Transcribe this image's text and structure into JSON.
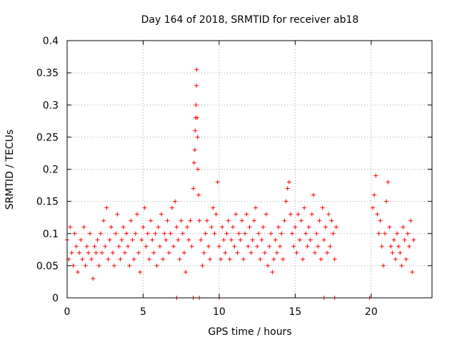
{
  "chart_data": {
    "type": "scatter",
    "title": "Day 164 of 2018, SRMTID for receiver ab18",
    "xlabel": "GPS time / hours",
    "ylabel": "SRMTID / TECUs",
    "xlim": [
      0,
      24
    ],
    "ylim": [
      0,
      0.4
    ],
    "xticks": [
      0,
      5,
      10,
      15,
      20
    ],
    "xtick_labels": [
      "0",
      "5",
      "10",
      "15",
      "20"
    ],
    "yticks": [
      0,
      0.05,
      0.1,
      0.15,
      0.2,
      0.25,
      0.3,
      0.35,
      0.4
    ],
    "ytick_labels": [
      "0",
      "0.05",
      "0.1",
      "0.15",
      "0.2",
      "0.25",
      "0.3",
      "0.35",
      "0.4"
    ],
    "grid": true,
    "marker": "+",
    "color": "#ff0000",
    "series": [
      {
        "name": "SRMTID",
        "x": [
          0.0,
          0.1,
          0.2,
          0.3,
          0.4,
          0.5,
          0.6,
          0.7,
          0.8,
          0.9,
          1.0,
          1.1,
          1.2,
          1.3,
          1.4,
          1.5,
          1.6,
          1.7,
          1.8,
          1.9,
          2.0,
          2.1,
          2.2,
          2.3,
          2.4,
          2.5,
          2.6,
          2.7,
          2.8,
          2.9,
          3.0,
          3.1,
          3.2,
          3.3,
          3.4,
          3.5,
          3.6,
          3.7,
          3.8,
          3.9,
          4.0,
          4.1,
          4.2,
          4.3,
          4.4,
          4.5,
          4.6,
          4.7,
          4.8,
          4.9,
          5.0,
          5.1,
          5.2,
          5.3,
          5.4,
          5.5,
          5.6,
          5.7,
          5.8,
          5.9,
          6.0,
          6.1,
          6.2,
          6.3,
          6.4,
          6.5,
          6.6,
          6.7,
          6.8,
          6.9,
          7.0,
          7.1,
          7.2,
          7.3,
          7.4,
          7.5,
          7.6,
          7.7,
          7.8,
          7.9,
          8.0,
          8.1,
          8.2,
          8.3,
          8.35,
          8.4,
          8.42,
          8.45,
          8.48,
          8.5,
          8.52,
          8.55,
          8.58,
          8.6,
          8.65,
          8.7,
          8.8,
          8.9,
          9.0,
          9.1,
          9.2,
          9.3,
          9.4,
          9.5,
          9.6,
          9.7,
          9.8,
          9.9,
          10.0,
          10.1,
          10.2,
          10.3,
          10.4,
          10.5,
          10.6,
          10.7,
          10.8,
          10.9,
          11.0,
          11.1,
          11.2,
          11.3,
          11.4,
          11.5,
          11.6,
          11.7,
          11.8,
          11.9,
          12.0,
          12.1,
          12.2,
          12.3,
          12.4,
          12.5,
          12.6,
          12.7,
          12.8,
          12.9,
          13.0,
          13.1,
          13.2,
          13.3,
          13.4,
          13.5,
          13.6,
          13.7,
          13.8,
          13.9,
          14.0,
          14.1,
          14.2,
          14.3,
          14.4,
          14.5,
          14.6,
          14.7,
          14.8,
          14.9,
          15.0,
          15.1,
          15.2,
          15.3,
          15.4,
          15.5,
          15.6,
          15.7,
          15.8,
          15.9,
          16.0,
          16.1,
          16.2,
          16.3,
          16.4,
          16.5,
          16.6,
          16.7,
          16.8,
          16.9,
          17.0,
          17.1,
          17.2,
          17.3,
          17.4,
          17.5,
          17.6,
          17.7,
          20.1,
          20.2,
          20.3,
          20.4,
          20.5,
          20.6,
          20.7,
          20.8,
          20.9,
          21.0,
          21.1,
          21.2,
          21.3,
          21.4,
          21.5,
          21.6,
          21.7,
          21.8,
          21.9,
          22.0,
          22.1,
          22.2,
          22.3,
          22.4,
          22.5,
          22.6,
          22.7,
          22.8,
          7.2,
          8.3,
          8.7,
          10.0,
          16.9,
          17.6,
          19.9
        ],
        "y": [
          0.09,
          0.06,
          0.11,
          0.07,
          0.05,
          0.1,
          0.08,
          0.04,
          0.07,
          0.09,
          0.06,
          0.11,
          0.05,
          0.08,
          0.07,
          0.1,
          0.06,
          0.03,
          0.08,
          0.07,
          0.09,
          0.05,
          0.1,
          0.07,
          0.12,
          0.08,
          0.14,
          0.06,
          0.09,
          0.11,
          0.07,
          0.05,
          0.1,
          0.13,
          0.08,
          0.06,
          0.09,
          0.11,
          0.07,
          0.1,
          0.08,
          0.05,
          0.12,
          0.09,
          0.06,
          0.1,
          0.13,
          0.07,
          0.04,
          0.09,
          0.11,
          0.14,
          0.08,
          0.1,
          0.06,
          0.12,
          0.09,
          0.07,
          0.1,
          0.05,
          0.11,
          0.08,
          0.13,
          0.06,
          0.1,
          0.09,
          0.12,
          0.07,
          0.1,
          0.14,
          0.08,
          0.15,
          0.11,
          0.09,
          0.06,
          0.12,
          0.1,
          0.07,
          0.04,
          0.11,
          0.09,
          0.12,
          0.08,
          0.17,
          0.21,
          0.23,
          0.26,
          0.28,
          0.3,
          0.33,
          0.355,
          0.28,
          0.25,
          0.2,
          0.16,
          0.12,
          0.09,
          0.05,
          0.07,
          0.1,
          0.12,
          0.08,
          0.06,
          0.11,
          0.14,
          0.1,
          0.13,
          0.18,
          0.08,
          0.06,
          0.11,
          0.09,
          0.07,
          0.1,
          0.12,
          0.06,
          0.09,
          0.11,
          0.08,
          0.13,
          0.07,
          0.1,
          0.09,
          0.12,
          0.06,
          0.1,
          0.13,
          0.08,
          0.11,
          0.07,
          0.09,
          0.12,
          0.14,
          0.08,
          0.1,
          0.06,
          0.09,
          0.11,
          0.07,
          0.13,
          0.05,
          0.08,
          0.1,
          0.04,
          0.06,
          0.09,
          0.07,
          0.11,
          0.08,
          0.1,
          0.06,
          0.12,
          0.15,
          0.17,
          0.18,
          0.13,
          0.1,
          0.08,
          0.11,
          0.07,
          0.13,
          0.09,
          0.12,
          0.06,
          0.14,
          0.1,
          0.08,
          0.11,
          0.09,
          0.13,
          0.16,
          0.07,
          0.1,
          0.08,
          0.12,
          0.06,
          0.14,
          0.09,
          0.11,
          0.07,
          0.13,
          0.08,
          0.12,
          0.1,
          0.06,
          0.11,
          0.14,
          0.16,
          0.19,
          0.13,
          0.1,
          0.12,
          0.08,
          0.05,
          0.1,
          0.15,
          0.18,
          0.11,
          0.08,
          0.07,
          0.09,
          0.06,
          0.1,
          0.08,
          0.07,
          0.05,
          0.11,
          0.09,
          0.06,
          0.1,
          0.08,
          0.12,
          0.04,
          0.09,
          0.0,
          0.0,
          0.0,
          0.0,
          0.0,
          0.0,
          0.0
        ]
      }
    ]
  }
}
